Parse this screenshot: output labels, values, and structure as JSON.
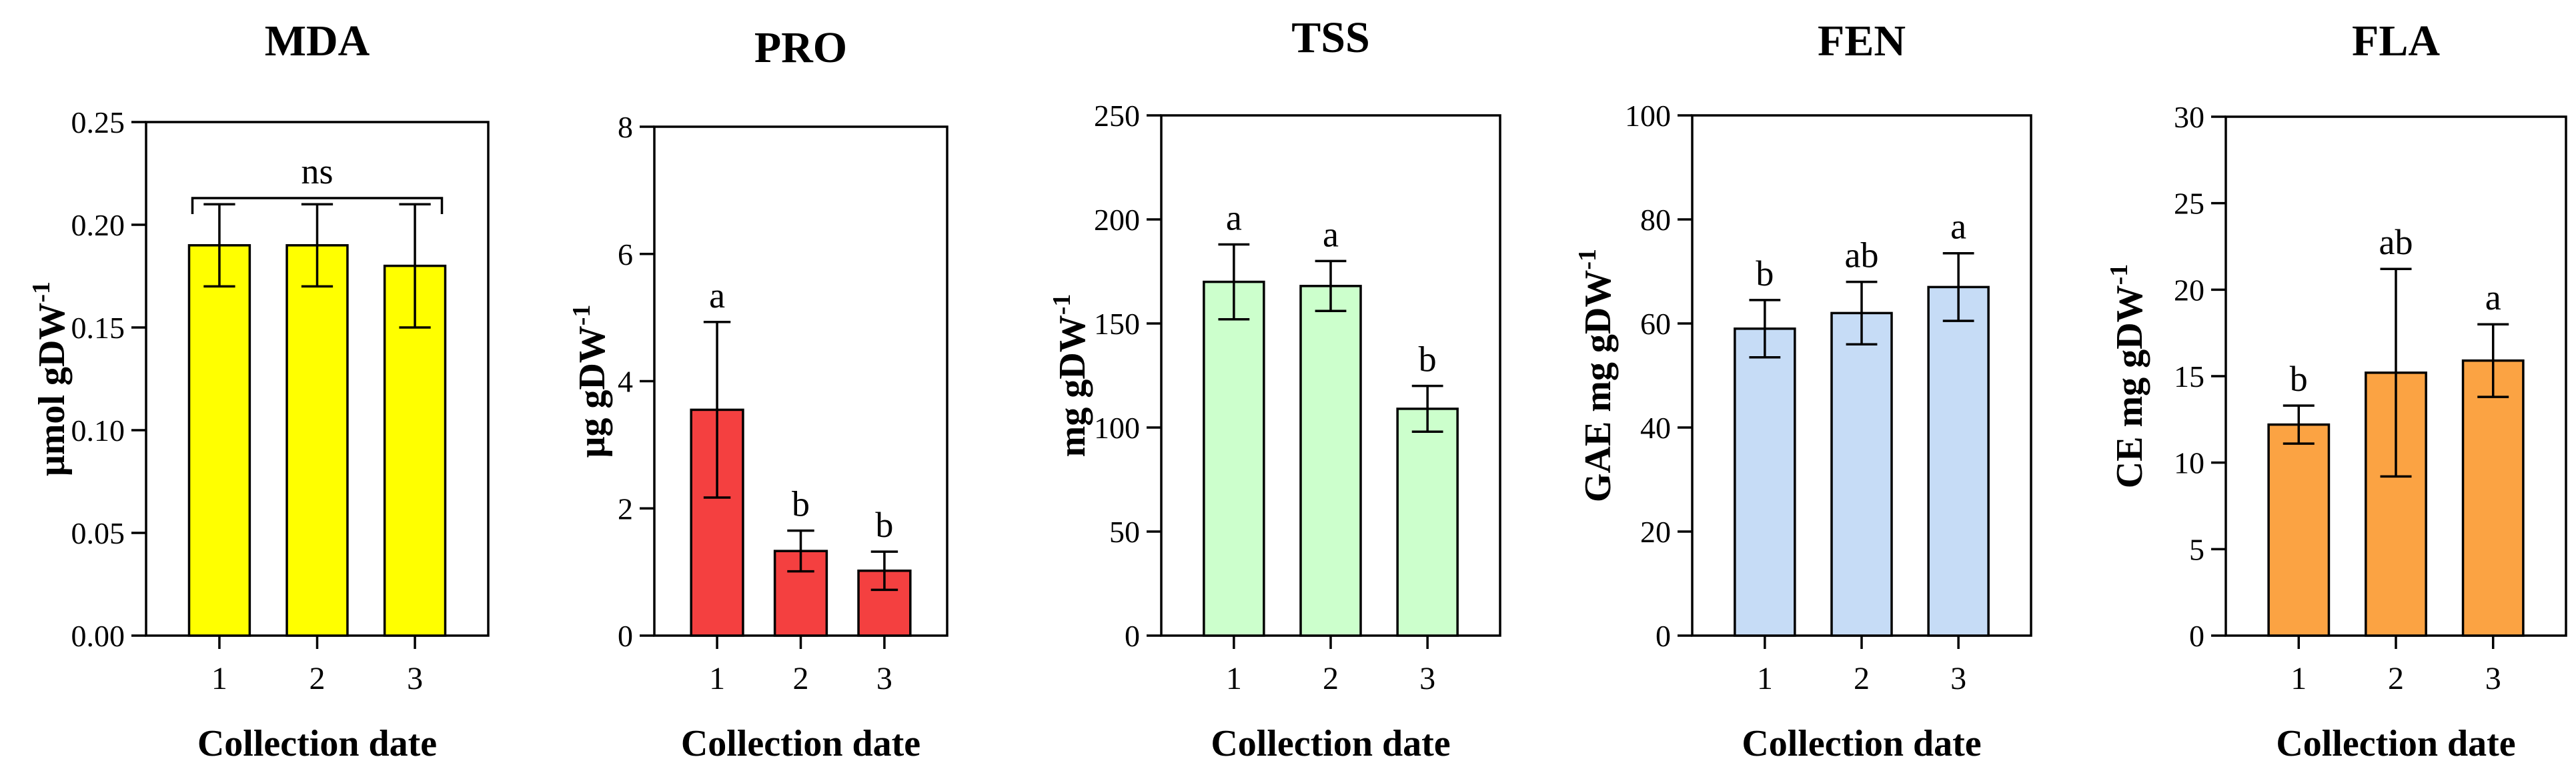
{
  "chart_data": [
    {
      "type": "bar",
      "title": "MDA",
      "xlabel": "Collection date",
      "ylabel": "μmol gDW",
      "ylabel_sup": "-1",
      "ylim": [
        0,
        0.25
      ],
      "yticks": [
        "0.00",
        "0.05",
        "0.10",
        "0.15",
        "0.20",
        "0.25"
      ],
      "categories": [
        "1",
        "2",
        "3"
      ],
      "values": [
        0.19,
        0.19,
        0.18
      ],
      "errors": [
        0.02,
        0.02,
        0.03
      ],
      "letters": [
        "",
        "",
        ""
      ],
      "annotation": "ns",
      "color": "#ffff00"
    },
    {
      "type": "bar",
      "title": "PRO",
      "xlabel": "Collection date",
      "ylabel": "μg gDW",
      "ylabel_sup": "-1",
      "ylim": [
        0,
        8
      ],
      "yticks": [
        "0",
        "2",
        "4",
        "6",
        "8"
      ],
      "categories": [
        "1",
        "2",
        "3"
      ],
      "values": [
        3.55,
        1.33,
        1.02
      ],
      "errors": [
        1.38,
        0.32,
        0.3
      ],
      "letters": [
        "a",
        "b",
        "b"
      ],
      "color": "#f44040"
    },
    {
      "type": "bar",
      "title": "TSS",
      "xlabel": "Collection date",
      "ylabel": "mg gDW",
      "ylabel_sup": "-1",
      "ylim": [
        0,
        250
      ],
      "yticks": [
        "0",
        "50",
        "100",
        "150",
        "200",
        "250"
      ],
      "categories": [
        "1",
        "2",
        "3"
      ],
      "values": [
        170,
        168,
        109
      ],
      "errors": [
        18,
        12,
        11
      ],
      "letters": [
        "a",
        "a",
        "b"
      ],
      "color": "#ccffcc"
    },
    {
      "type": "bar",
      "title": "FEN",
      "xlabel": "Collection date",
      "ylabel": "GAE mg gDW",
      "ylabel_sup": "-1",
      "ylim": [
        0,
        100
      ],
      "yticks": [
        "0",
        "20",
        "40",
        "60",
        "80",
        "100"
      ],
      "categories": [
        "1",
        "2",
        "3"
      ],
      "values": [
        59,
        62,
        67
      ],
      "errors": [
        5.5,
        6,
        6.5
      ],
      "letters": [
        "b",
        "ab",
        "a"
      ],
      "color": "#c6dcf6"
    },
    {
      "type": "bar",
      "title": "FLA",
      "xlabel": "Collection date",
      "ylabel": "CE mg gDW",
      "ylabel_sup": "-1",
      "ylim": [
        0,
        30
      ],
      "yticks": [
        "0",
        "5",
        "10",
        "15",
        "20",
        "25",
        "30"
      ],
      "categories": [
        "1",
        "2",
        "3"
      ],
      "values": [
        12.2,
        15.2,
        15.9
      ],
      "errors": [
        1.1,
        6.0,
        2.1
      ],
      "letters": [
        "b",
        "ab",
        "a"
      ],
      "color": "#fba343"
    }
  ]
}
